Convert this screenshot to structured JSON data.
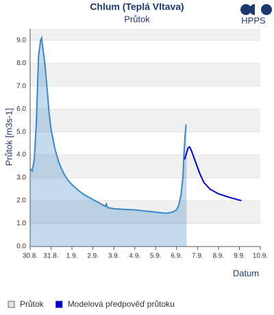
{
  "chart_data": {
    "type": "line",
    "title": "Chlum (Teplá Vltava)",
    "subtitle": "Průtok",
    "logo": "HPPS",
    "y_label": "Průtok [m3s-1]",
    "x_label": "Datum",
    "xlim": [
      0,
      11
    ],
    "xticks": [
      {
        "value": 0,
        "label": "30.8."
      },
      {
        "value": 1,
        "label": "31.8."
      },
      {
        "value": 2,
        "label": "1.9."
      },
      {
        "value": 3,
        "label": "2.9."
      },
      {
        "value": 4,
        "label": "3.9."
      },
      {
        "value": 5,
        "label": "4.9."
      },
      {
        "value": 6,
        "label": "5.9."
      },
      {
        "value": 7,
        "label": "6.9."
      },
      {
        "value": 8,
        "label": "7.9."
      },
      {
        "value": 9,
        "label": "8.9."
      },
      {
        "value": 10,
        "label": "9.9."
      },
      {
        "value": 11,
        "label": "10.9."
      }
    ],
    "ylim": [
      0,
      9.5
    ],
    "yticks": [
      {
        "value": 0,
        "label": "0.0"
      },
      {
        "value": 1,
        "label": "1.0"
      },
      {
        "value": 2,
        "label": "2.0"
      },
      {
        "value": 3,
        "label": "3.0"
      },
      {
        "value": 4,
        "label": "4.0"
      },
      {
        "value": 5,
        "label": "5.0"
      },
      {
        "value": 6,
        "label": "6.0"
      },
      {
        "value": 7,
        "label": "7.0"
      },
      {
        "value": 8,
        "label": "8.0"
      },
      {
        "value": 9,
        "label": "9.0"
      }
    ],
    "grid": true,
    "series": [
      {
        "name": "Průtok",
        "color": "#3a87c8",
        "area": true,
        "legend_color": "#e4e4e4",
        "x": [
          0,
          0.1,
          0.2,
          0.3,
          0.4,
          0.5,
          0.55,
          0.6,
          0.7,
          0.8,
          0.9,
          1.0,
          1.2,
          1.4,
          1.6,
          1.8,
          2.0,
          2.3,
          2.6,
          3.0,
          3.3,
          3.6,
          3.64,
          3.7,
          4.0,
          4.5,
          5.0,
          5.5,
          6.0,
          6.5,
          6.8,
          7.0,
          7.1,
          7.2,
          7.3,
          7.35,
          7.4,
          7.45,
          7.48
        ],
        "values": [
          3.4,
          3.3,
          3.8,
          5.5,
          8.3,
          9.0,
          9.1,
          8.7,
          8.0,
          7.0,
          5.9,
          5.1,
          4.2,
          3.6,
          3.2,
          2.9,
          2.7,
          2.45,
          2.25,
          2.05,
          1.9,
          1.75,
          1.85,
          1.7,
          1.65,
          1.62,
          1.6,
          1.55,
          1.5,
          1.45,
          1.5,
          1.6,
          1.8,
          2.2,
          3.0,
          4.0,
          4.8,
          5.3,
          5.3
        ]
      },
      {
        "name": "Modelová předpověď průtoku",
        "color": "#0000cc",
        "area": false,
        "legend_color": "#0000cc",
        "x": [
          7.38,
          7.45,
          7.55,
          7.62,
          7.7,
          7.9,
          8.1,
          8.3,
          8.6,
          9.0,
          9.5,
          10.1
        ],
        "values": [
          3.8,
          4.0,
          4.3,
          4.35,
          4.2,
          3.7,
          3.2,
          2.8,
          2.5,
          2.3,
          2.15,
          2.0
        ]
      }
    ]
  }
}
